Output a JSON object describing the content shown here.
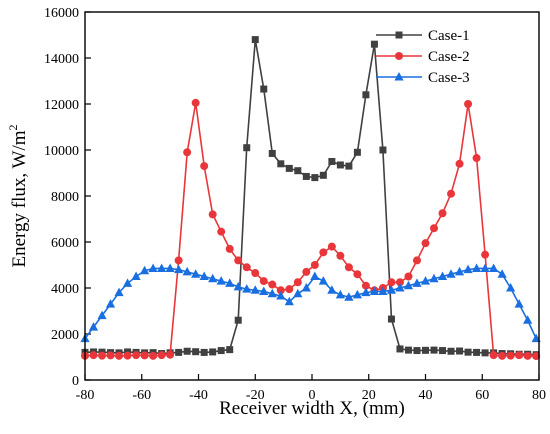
{
  "chart_data": {
    "type": "line",
    "xlabel": "Receiver width X, (mm)",
    "ylabel": "Energy flux, W/m",
    "ylabel_sup": "2",
    "xlim": [
      -80,
      80
    ],
    "ylim": [
      0,
      16000
    ],
    "xticks": [
      -80,
      -60,
      -40,
      -20,
      0,
      20,
      40,
      60,
      80
    ],
    "yticks": [
      0,
      2000,
      4000,
      6000,
      8000,
      10000,
      12000,
      14000,
      16000
    ],
    "grid": false,
    "legend_position": "top-right",
    "series": [
      {
        "name": "Case-1",
        "color": "#404040",
        "marker": "square",
        "x": [
          -80,
          -77,
          -74,
          -71,
          -68,
          -65,
          -62,
          -59,
          -56,
          -53,
          -50,
          -47,
          -44,
          -41,
          -38,
          -35,
          -32,
          -29,
          -26,
          -23,
          -20,
          -17,
          -14,
          -11,
          -8,
          -5,
          -2,
          1,
          4,
          7,
          10,
          13,
          16,
          19,
          22,
          25,
          28,
          31,
          34,
          37,
          40,
          43,
          46,
          49,
          52,
          55,
          58,
          61,
          64,
          67,
          70,
          73,
          76,
          79
        ],
        "y": [
          1200,
          1220,
          1210,
          1190,
          1180,
          1220,
          1200,
          1180,
          1190,
          1150,
          1180,
          1200,
          1250,
          1230,
          1200,
          1220,
          1280,
          1320,
          2600,
          10100,
          14800,
          12650,
          9850,
          9400,
          9200,
          9100,
          8850,
          8800,
          8900,
          9500,
          9350,
          9300,
          9900,
          12400,
          14600,
          10000,
          2650,
          1350,
          1300,
          1280,
          1290,
          1300,
          1280,
          1250,
          1260,
          1210,
          1200,
          1180,
          1180,
          1150,
          1140,
          1120,
          1120,
          1100
        ]
      },
      {
        "name": "Case-2",
        "color": "#e8363a",
        "marker": "circle",
        "x": [
          -80,
          -77,
          -74,
          -71,
          -68,
          -65,
          -62,
          -59,
          -56,
          -53,
          -50,
          -47,
          -44,
          -41,
          -38,
          -35,
          -32,
          -29,
          -26,
          -23,
          -20,
          -17,
          -14,
          -11,
          -8,
          -5,
          -2,
          1,
          4,
          7,
          10,
          13,
          16,
          19,
          22,
          25,
          28,
          31,
          34,
          37,
          40,
          43,
          46,
          49,
          52,
          55,
          58,
          61,
          64,
          67,
          70,
          73,
          76,
          79
        ],
        "y": [
          1050,
          1080,
          1060,
          1070,
          1050,
          1060,
          1080,
          1070,
          1050,
          1080,
          1100,
          5200,
          9900,
          12050,
          9300,
          7200,
          6450,
          5700,
          5200,
          4900,
          4650,
          4300,
          4150,
          3900,
          3950,
          4250,
          4700,
          5000,
          5550,
          5800,
          5400,
          4900,
          4600,
          4100,
          3900,
          4000,
          4250,
          4250,
          4500,
          5200,
          5950,
          6600,
          7250,
          8100,
          9400,
          12000,
          9650,
          5450,
          1080,
          1050,
          1060,
          1080,
          1050,
          1040
        ]
      },
      {
        "name": "Case-3",
        "color": "#1a6fe0",
        "marker": "triangle",
        "x": [
          -80,
          -77,
          -74,
          -71,
          -68,
          -65,
          -62,
          -59,
          -56,
          -53,
          -50,
          -47,
          -44,
          -41,
          -38,
          -35,
          -32,
          -29,
          -26,
          -23,
          -20,
          -17,
          -14,
          -11,
          -8,
          -5,
          -2,
          1,
          4,
          7,
          10,
          13,
          16,
          19,
          22,
          25,
          28,
          31,
          34,
          37,
          40,
          43,
          46,
          49,
          52,
          55,
          58,
          61,
          64,
          67,
          70,
          73,
          76,
          79
        ],
        "y": [
          1800,
          2300,
          2800,
          3300,
          3800,
          4200,
          4500,
          4750,
          4850,
          4850,
          4850,
          4800,
          4700,
          4600,
          4500,
          4400,
          4300,
          4200,
          4050,
          3950,
          3900,
          3850,
          3750,
          3650,
          3400,
          3750,
          4000,
          4500,
          4300,
          3900,
          3700,
          3600,
          3700,
          3800,
          3850,
          3850,
          3900,
          4000,
          4100,
          4200,
          4300,
          4400,
          4500,
          4600,
          4700,
          4800,
          4850,
          4850,
          4850,
          4600,
          4000,
          3300,
          2600,
          1800
        ]
      }
    ]
  }
}
